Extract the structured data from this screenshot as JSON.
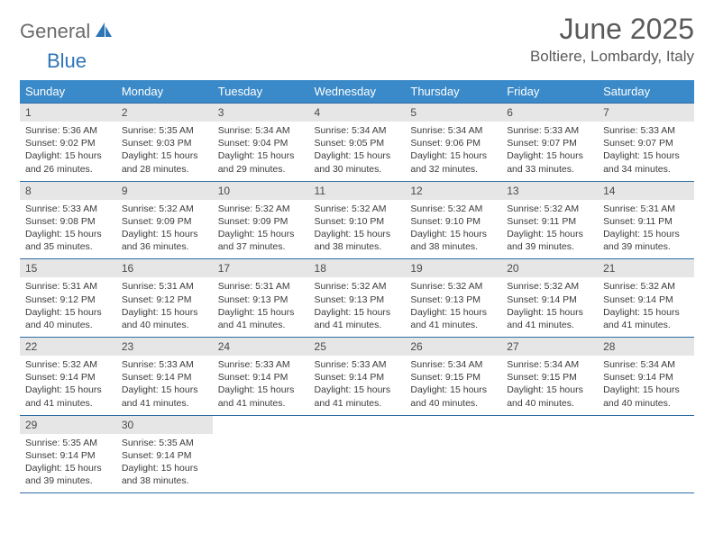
{
  "brand": {
    "general": "General",
    "blue": "Blue"
  },
  "header": {
    "month_title": "June 2025",
    "location": "Boltiere, Lombardy, Italy"
  },
  "colors": {
    "header_bg": "#3a8ac9",
    "border": "#2e6da4",
    "daynum_bg": "#e6e6e6",
    "text_dark": "#3b3b3b",
    "title_color": "#5a5a5a",
    "logo_gray": "#6b6b6b",
    "logo_blue": "#2e75b6"
  },
  "day_headers": [
    "Sunday",
    "Monday",
    "Tuesday",
    "Wednesday",
    "Thursday",
    "Friday",
    "Saturday"
  ],
  "weeks": [
    [
      {
        "n": "1",
        "sr": "5:36 AM",
        "ss": "9:02 PM",
        "dl": "15 hours and 26 minutes."
      },
      {
        "n": "2",
        "sr": "5:35 AM",
        "ss": "9:03 PM",
        "dl": "15 hours and 28 minutes."
      },
      {
        "n": "3",
        "sr": "5:34 AM",
        "ss": "9:04 PM",
        "dl": "15 hours and 29 minutes."
      },
      {
        "n": "4",
        "sr": "5:34 AM",
        "ss": "9:05 PM",
        "dl": "15 hours and 30 minutes."
      },
      {
        "n": "5",
        "sr": "5:34 AM",
        "ss": "9:06 PM",
        "dl": "15 hours and 32 minutes."
      },
      {
        "n": "6",
        "sr": "5:33 AM",
        "ss": "9:07 PM",
        "dl": "15 hours and 33 minutes."
      },
      {
        "n": "7",
        "sr": "5:33 AM",
        "ss": "9:07 PM",
        "dl": "15 hours and 34 minutes."
      }
    ],
    [
      {
        "n": "8",
        "sr": "5:33 AM",
        "ss": "9:08 PM",
        "dl": "15 hours and 35 minutes."
      },
      {
        "n": "9",
        "sr": "5:32 AM",
        "ss": "9:09 PM",
        "dl": "15 hours and 36 minutes."
      },
      {
        "n": "10",
        "sr": "5:32 AM",
        "ss": "9:09 PM",
        "dl": "15 hours and 37 minutes."
      },
      {
        "n": "11",
        "sr": "5:32 AM",
        "ss": "9:10 PM",
        "dl": "15 hours and 38 minutes."
      },
      {
        "n": "12",
        "sr": "5:32 AM",
        "ss": "9:10 PM",
        "dl": "15 hours and 38 minutes."
      },
      {
        "n": "13",
        "sr": "5:32 AM",
        "ss": "9:11 PM",
        "dl": "15 hours and 39 minutes."
      },
      {
        "n": "14",
        "sr": "5:31 AM",
        "ss": "9:11 PM",
        "dl": "15 hours and 39 minutes."
      }
    ],
    [
      {
        "n": "15",
        "sr": "5:31 AM",
        "ss": "9:12 PM",
        "dl": "15 hours and 40 minutes."
      },
      {
        "n": "16",
        "sr": "5:31 AM",
        "ss": "9:12 PM",
        "dl": "15 hours and 40 minutes."
      },
      {
        "n": "17",
        "sr": "5:31 AM",
        "ss": "9:13 PM",
        "dl": "15 hours and 41 minutes."
      },
      {
        "n": "18",
        "sr": "5:32 AM",
        "ss": "9:13 PM",
        "dl": "15 hours and 41 minutes."
      },
      {
        "n": "19",
        "sr": "5:32 AM",
        "ss": "9:13 PM",
        "dl": "15 hours and 41 minutes."
      },
      {
        "n": "20",
        "sr": "5:32 AM",
        "ss": "9:14 PM",
        "dl": "15 hours and 41 minutes."
      },
      {
        "n": "21",
        "sr": "5:32 AM",
        "ss": "9:14 PM",
        "dl": "15 hours and 41 minutes."
      }
    ],
    [
      {
        "n": "22",
        "sr": "5:32 AM",
        "ss": "9:14 PM",
        "dl": "15 hours and 41 minutes."
      },
      {
        "n": "23",
        "sr": "5:33 AM",
        "ss": "9:14 PM",
        "dl": "15 hours and 41 minutes."
      },
      {
        "n": "24",
        "sr": "5:33 AM",
        "ss": "9:14 PM",
        "dl": "15 hours and 41 minutes."
      },
      {
        "n": "25",
        "sr": "5:33 AM",
        "ss": "9:14 PM",
        "dl": "15 hours and 41 minutes."
      },
      {
        "n": "26",
        "sr": "5:34 AM",
        "ss": "9:15 PM",
        "dl": "15 hours and 40 minutes."
      },
      {
        "n": "27",
        "sr": "5:34 AM",
        "ss": "9:15 PM",
        "dl": "15 hours and 40 minutes."
      },
      {
        "n": "28",
        "sr": "5:34 AM",
        "ss": "9:14 PM",
        "dl": "15 hours and 40 minutes."
      }
    ],
    [
      {
        "n": "29",
        "sr": "5:35 AM",
        "ss": "9:14 PM",
        "dl": "15 hours and 39 minutes."
      },
      {
        "n": "30",
        "sr": "5:35 AM",
        "ss": "9:14 PM",
        "dl": "15 hours and 38 minutes."
      },
      null,
      null,
      null,
      null,
      null
    ]
  ],
  "labels": {
    "sunrise": "Sunrise:",
    "sunset": "Sunset:",
    "daylight": "Daylight:"
  }
}
